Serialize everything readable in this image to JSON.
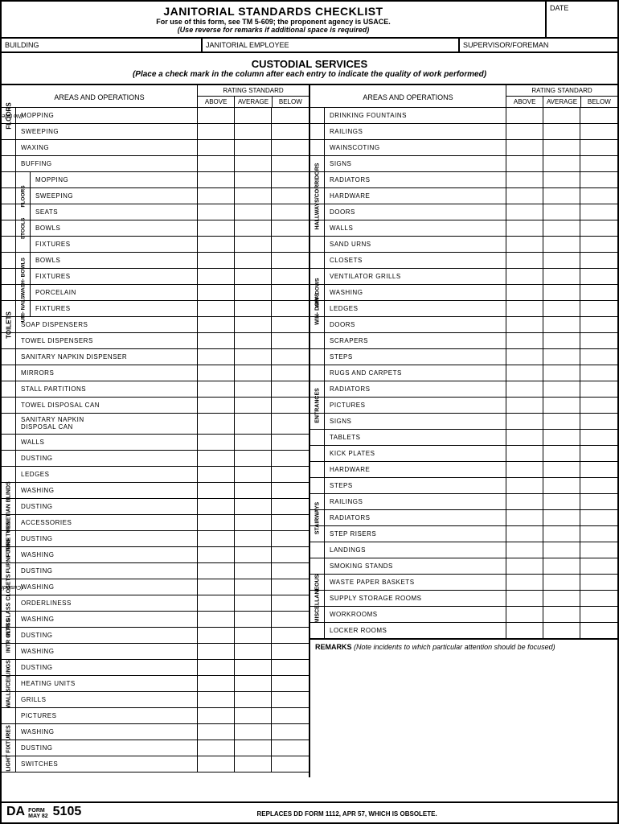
{
  "header": {
    "title": "JANITORIAL STANDARDS CHECKLIST",
    "sub1": "For use of this form, see TM 5-609; the proponent agency is USACE.",
    "sub2": "(Use reverse for remarks if additional space is required)",
    "date_label": "DATE"
  },
  "info": {
    "building": "BUILDING",
    "employee": "JANITORIAL EMPLOYEE",
    "supervisor": "SUPERVISOR/FOREMAN"
  },
  "section": {
    "title": "CUSTODIAL SERVICES",
    "sub": "(Place a check mark in the column after each entry to indicate the quality of work performed)"
  },
  "colhdr": {
    "areas": "AREAS AND OPERATIONS",
    "rating": "RATING STANDARD",
    "above": "ABOVE",
    "average": "AVERAGE",
    "below": "BELOW"
  },
  "left": {
    "floors": {
      "label": "FLOORS",
      "sub": "(No toilets)",
      "items": [
        "MOPPING",
        "SWEEPING",
        "WAXING",
        "BUFFING"
      ]
    },
    "toilets": {
      "label": "TOILETS",
      "floors": {
        "label": "FLOORS",
        "items": [
          "MOPPING",
          "SWEEPING"
        ]
      },
      "stools": {
        "label": "STOOLS",
        "items": [
          "SEATS",
          "BOWLS",
          "FIXTURES"
        ]
      },
      "washbowls": {
        "label": "WASH-\nBOWLS",
        "items": [
          "BOWLS",
          "FIXTURES"
        ]
      },
      "urinals": {
        "label": "URI-\nNALS",
        "items": [
          "PORCELAIN",
          "FIXTURES"
        ]
      },
      "items": [
        "SOAP DISPENSERS",
        "TOWEL DISPENSERS",
        "SANITARY NAPKIN DISPENSER",
        "MIRRORS",
        "STALL PARTITIONS",
        "TOWEL DISPOSAL CAN",
        "SANITARY NAPKIN\nDISPOSAL CAN",
        "WALLS",
        "DUSTING",
        "LEDGES"
      ]
    },
    "venetian": {
      "label": "VENETIAN\nBLINDS",
      "items": [
        "WASHING",
        "DUSTING",
        "ACCESSORIES"
      ]
    },
    "furniture": {
      "label": "FURNI-\nTURE",
      "items": [
        "DUSTING",
        "WASHING"
      ]
    },
    "closets": {
      "label": "CLOSETS",
      "sub": "(Custodial)",
      "items": [
        "DUSTING",
        "WASHING",
        "ORDERLINESS"
      ]
    },
    "intrglass": {
      "label": "INTR\nGLASS",
      "items": [
        "WASHING",
        "DUSTING"
      ]
    },
    "walls": {
      "label": "WALLS/CEILINGS",
      "items": [
        "WASHING",
        "DUSTING",
        "HEATING UNITS",
        "GRILLS",
        "PICTURES"
      ]
    },
    "light": {
      "label": "LIGHT\nFIXTURES",
      "items": [
        "WASHING",
        "DUSTING",
        "SWITCHES"
      ]
    }
  },
  "right": {
    "hallways": {
      "label": "HALLWAYS/CORRIDORS",
      "items": [
        "DRINKING FOUNTAINS",
        "RAILINGS",
        "WAINSCOTING",
        "SIGNS",
        "RADIATORS",
        "HARDWARE",
        "DOORS",
        "WALLS",
        "SAND URNS",
        "CLOSETS",
        "VENTILATOR GRILLS"
      ]
    },
    "windows": {
      "label": "WIN-\nDOWS",
      "items": [
        "WASHING",
        "LEDGES"
      ]
    },
    "entrances": {
      "label": "ENTRANCES",
      "items": [
        "DOORS",
        "SCRAPERS",
        "STEPS",
        "RUGS AND CARPETS",
        "RADIATORS",
        "PICTURES",
        "SIGNS",
        "TABLETS",
        "KICK PLATES",
        "HARDWARE"
      ]
    },
    "stairways": {
      "label": "STAIRWAYS",
      "items": [
        "STEPS",
        "RAILINGS",
        "RADIATORS",
        "STEP RISERS",
        "LANDINGS"
      ]
    },
    "misc": {
      "label": "MISCELLANEOUS",
      "items": [
        "SMOKING STANDS",
        "WASTE PAPER BASKETS",
        "SUPPLY STORAGE ROOMS",
        "WORKROOMS",
        "LOCKER ROOMS"
      ]
    },
    "remarks_label": "REMARKS",
    "remarks_note": "(Note incidents to which particular attention should be focused)"
  },
  "footer": {
    "da": "DA",
    "form": "FORM",
    "date": "MAY 82",
    "number": "5105",
    "replaces": "REPLACES DD FORM 1112, APR 57, WHICH IS OBSOLETE."
  }
}
